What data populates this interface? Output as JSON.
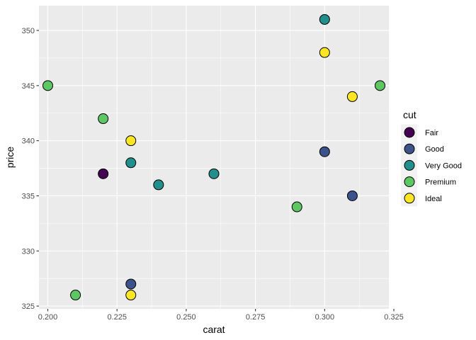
{
  "chart_data": {
    "type": "scatter",
    "xlabel": "carat",
    "ylabel": "price",
    "xlim": [
      0.1968,
      0.3232
    ],
    "ylim": [
      324.75,
      352.25
    ],
    "x_ticks": [
      {
        "value": 0.2,
        "label": "0.200"
      },
      {
        "value": 0.225,
        "label": "0.225"
      },
      {
        "value": 0.25,
        "label": "0.250"
      },
      {
        "value": 0.275,
        "label": "0.275"
      },
      {
        "value": 0.3,
        "label": "0.300"
      },
      {
        "value": 0.325,
        "label": "0.325"
      }
    ],
    "y_ticks": [
      {
        "value": 325,
        "label": "325"
      },
      {
        "value": 330,
        "label": "330"
      },
      {
        "value": 335,
        "label": "335"
      },
      {
        "value": 340,
        "label": "340"
      },
      {
        "value": 345,
        "label": "345"
      },
      {
        "value": 350,
        "label": "350"
      }
    ],
    "grid": true,
    "legend": {
      "title": "cut",
      "position": "right"
    },
    "series": [
      {
        "name": "Fair",
        "color": "#440154",
        "points": [
          [
            0.22,
            337
          ]
        ]
      },
      {
        "name": "Good",
        "color": "#3b528b",
        "points": [
          [
            0.23,
            327
          ],
          [
            0.3,
            339
          ],
          [
            0.31,
            335
          ]
        ]
      },
      {
        "name": "Very Good",
        "color": "#21908c",
        "points": [
          [
            0.23,
            338
          ],
          [
            0.24,
            336
          ],
          [
            0.26,
            337
          ],
          [
            0.3,
            351
          ]
        ]
      },
      {
        "name": "Premium",
        "color": "#5dc863",
        "points": [
          [
            0.2,
            345
          ],
          [
            0.21,
            326
          ],
          [
            0.22,
            342
          ],
          [
            0.29,
            334
          ],
          [
            0.32,
            345
          ]
        ]
      },
      {
        "name": "Ideal",
        "color": "#fde725",
        "points": [
          [
            0.23,
            340
          ],
          [
            0.23,
            326
          ],
          [
            0.3,
            348
          ],
          [
            0.31,
            344
          ]
        ]
      }
    ]
  }
}
